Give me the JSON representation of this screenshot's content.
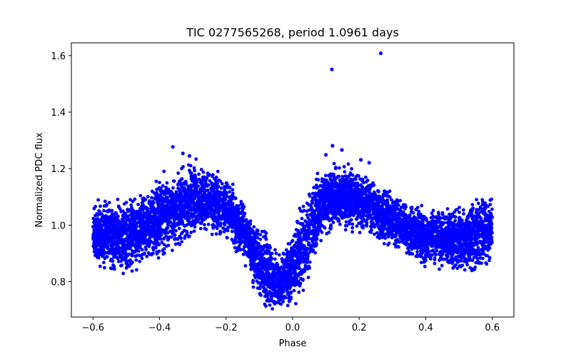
{
  "chart_data": {
    "type": "scatter",
    "title": "TIC 0277565268, period 1.0961 days",
    "xlabel": "Phase",
    "ylabel": "Normalized PDC flux",
    "xlim": [
      -0.665,
      0.665
    ],
    "ylim": [
      0.675,
      1.645
    ],
    "xticks": [
      -0.6,
      -0.4,
      -0.2,
      0.0,
      0.2,
      0.4,
      0.6
    ],
    "xtick_labels": [
      "−0.6",
      "−0.4",
      "−0.2",
      "0.0",
      "0.2",
      "0.4",
      "0.6"
    ],
    "yticks": [
      0.8,
      1.0,
      1.2,
      1.4,
      1.6
    ],
    "ytick_labels": [
      "0.8",
      "1.0",
      "1.2",
      "1.4",
      "1.6"
    ],
    "marker_color": "#0000ff",
    "grid": false,
    "legend": false,
    "series": [
      {
        "name": "flux",
        "envelope": {
          "phase": [
            -0.6,
            -0.55,
            -0.5,
            -0.45,
            -0.4,
            -0.35,
            -0.3,
            -0.25,
            -0.2,
            -0.15,
            -0.12,
            -0.1,
            -0.08,
            -0.06,
            -0.04,
            -0.02,
            0.0,
            0.02,
            0.04,
            0.06,
            0.08,
            0.1,
            0.15,
            0.2,
            0.25,
            0.3,
            0.35,
            0.4,
            0.45,
            0.5,
            0.55,
            0.6
          ],
          "upper": [
            1.07,
            1.08,
            1.08,
            1.11,
            1.16,
            1.19,
            1.21,
            1.19,
            1.16,
            1.09,
            1.02,
            1.0,
            0.98,
            0.91,
            0.89,
            0.92,
            0.96,
            1.05,
            1.12,
            1.16,
            1.18,
            1.2,
            1.21,
            1.19,
            1.15,
            1.1,
            1.08,
            1.06,
            1.05,
            1.06,
            1.07,
            1.1
          ],
          "lower": [
            0.87,
            0.85,
            0.84,
            0.86,
            0.89,
            0.93,
            0.96,
            0.97,
            0.95,
            0.88,
            0.8,
            0.74,
            0.71,
            0.7,
            0.7,
            0.71,
            0.72,
            0.74,
            0.77,
            0.85,
            0.93,
            0.98,
            0.99,
            0.98,
            0.96,
            0.93,
            0.89,
            0.86,
            0.85,
            0.84,
            0.85,
            0.88
          ]
        },
        "outliers": {
          "x": [
            0.118,
            0.265,
            -0.36,
            -0.33,
            -0.31,
            0.1,
            0.12,
            0.148,
            0.23,
            0.205
          ],
          "y": [
            1.551,
            1.608,
            1.277,
            1.254,
            1.245,
            1.249,
            1.281,
            1.266,
            1.221,
            1.231
          ]
        }
      }
    ]
  }
}
